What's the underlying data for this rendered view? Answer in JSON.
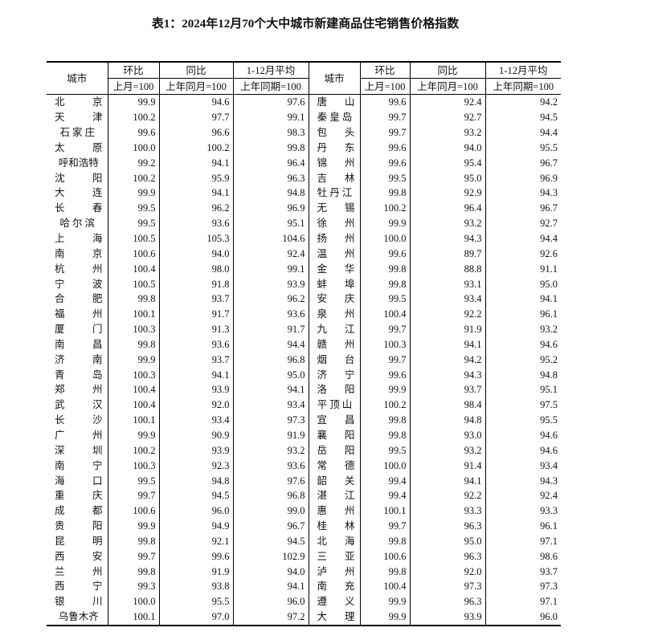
{
  "title": "表1：2024年12月70个大中城市新建商品住宅销售价格指数",
  "headers": {
    "city": "城市",
    "mom": "环比",
    "mom_base": "上月=100",
    "yoy": "同比",
    "yoy_base": "上年同月=100",
    "avg": "1-12月平均",
    "avg_base": "上年同期=100"
  },
  "left": [
    [
      "北京",
      "99.9",
      "94.6",
      "97.6"
    ],
    [
      "天津",
      "100.2",
      "97.7",
      "99.1"
    ],
    [
      "石家庄",
      "99.6",
      "96.6",
      "98.3"
    ],
    [
      "太原",
      "100.0",
      "100.2",
      "99.8"
    ],
    [
      "呼和浩特",
      "99.2",
      "94.1",
      "96.4"
    ],
    [
      "沈阳",
      "100.2",
      "95.9",
      "96.3"
    ],
    [
      "大连",
      "99.9",
      "94.1",
      "94.8"
    ],
    [
      "长春",
      "99.5",
      "96.2",
      "96.9"
    ],
    [
      "哈尔滨",
      "99.5",
      "93.6",
      "95.1"
    ],
    [
      "上海",
      "100.5",
      "105.3",
      "104.6"
    ],
    [
      "南京",
      "100.6",
      "94.0",
      "92.4"
    ],
    [
      "杭州",
      "100.4",
      "98.0",
      "99.1"
    ],
    [
      "宁波",
      "100.5",
      "91.8",
      "93.9"
    ],
    [
      "合肥",
      "99.8",
      "93.7",
      "96.2"
    ],
    [
      "福州",
      "100.1",
      "91.7",
      "93.6"
    ],
    [
      "厦门",
      "100.3",
      "91.3",
      "91.7"
    ],
    [
      "南昌",
      "99.8",
      "93.6",
      "94.4"
    ],
    [
      "济南",
      "99.9",
      "93.7",
      "96.8"
    ],
    [
      "青岛",
      "100.3",
      "94.1",
      "95.0"
    ],
    [
      "郑州",
      "100.4",
      "93.9",
      "94.1"
    ],
    [
      "武汉",
      "100.4",
      "92.0",
      "93.4"
    ],
    [
      "长沙",
      "100.1",
      "93.4",
      "97.3"
    ],
    [
      "广州",
      "99.9",
      "90.9",
      "91.9"
    ],
    [
      "深圳",
      "100.2",
      "93.9",
      "93.2"
    ],
    [
      "南宁",
      "100.3",
      "92.3",
      "93.6"
    ],
    [
      "海口",
      "99.5",
      "94.8",
      "97.6"
    ],
    [
      "重庆",
      "99.7",
      "94.5",
      "96.8"
    ],
    [
      "成都",
      "100.6",
      "96.0",
      "99.0"
    ],
    [
      "贵阳",
      "99.9",
      "94.9",
      "96.7"
    ],
    [
      "昆明",
      "99.8",
      "92.1",
      "94.5"
    ],
    [
      "西安",
      "99.7",
      "99.6",
      "102.9"
    ],
    [
      "兰州",
      "99.8",
      "91.9",
      "94.0"
    ],
    [
      "西宁",
      "99.3",
      "93.8",
      "94.1"
    ],
    [
      "银川",
      "100.0",
      "95.5",
      "96.0"
    ],
    [
      "乌鲁木齐",
      "100.1",
      "97.0",
      "97.2"
    ]
  ],
  "right": [
    [
      "唐山",
      "99.6",
      "92.4",
      "94.2"
    ],
    [
      "秦皇岛",
      "99.7",
      "92.7",
      "94.5"
    ],
    [
      "包头",
      "99.7",
      "93.2",
      "94.4"
    ],
    [
      "丹东",
      "99.6",
      "94.0",
      "95.5"
    ],
    [
      "锦州",
      "99.6",
      "95.4",
      "96.7"
    ],
    [
      "吉林",
      "99.5",
      "95.0",
      "96.9"
    ],
    [
      "牡丹江",
      "99.8",
      "92.9",
      "94.3"
    ],
    [
      "无锡",
      "100.2",
      "96.4",
      "96.7"
    ],
    [
      "徐州",
      "99.9",
      "93.2",
      "92.7"
    ],
    [
      "扬州",
      "100.0",
      "94.3",
      "94.4"
    ],
    [
      "温州",
      "99.6",
      "89.7",
      "92.6"
    ],
    [
      "金华",
      "99.8",
      "88.8",
      "91.1"
    ],
    [
      "蚌埠",
      "99.8",
      "93.1",
      "95.0"
    ],
    [
      "安庆",
      "99.5",
      "93.4",
      "94.1"
    ],
    [
      "泉州",
      "100.4",
      "92.2",
      "96.1"
    ],
    [
      "九江",
      "99.7",
      "91.9",
      "93.2"
    ],
    [
      "赣州",
      "100.3",
      "94.1",
      "94.6"
    ],
    [
      "烟台",
      "99.7",
      "94.2",
      "95.2"
    ],
    [
      "济宁",
      "99.6",
      "94.3",
      "94.8"
    ],
    [
      "洛阳",
      "99.9",
      "93.7",
      "95.1"
    ],
    [
      "平顶山",
      "100.2",
      "98.4",
      "97.5"
    ],
    [
      "宜昌",
      "99.8",
      "94.8",
      "95.5"
    ],
    [
      "襄阳",
      "99.8",
      "93.0",
      "94.6"
    ],
    [
      "岳阳",
      "99.5",
      "93.2",
      "94.6"
    ],
    [
      "常德",
      "100.0",
      "91.4",
      "93.4"
    ],
    [
      "韶关",
      "99.4",
      "94.1",
      "94.3"
    ],
    [
      "湛江",
      "99.4",
      "92.2",
      "92.4"
    ],
    [
      "惠州",
      "100.1",
      "93.3",
      "93.3"
    ],
    [
      "桂林",
      "99.7",
      "96.3",
      "96.1"
    ],
    [
      "北海",
      "99.8",
      "95.0",
      "97.1"
    ],
    [
      "三亚",
      "100.6",
      "96.3",
      "98.6"
    ],
    [
      "泸州",
      "99.8",
      "92.0",
      "93.7"
    ],
    [
      "南充",
      "100.4",
      "97.3",
      "97.3"
    ],
    [
      "遵义",
      "99.9",
      "96.3",
      "97.1"
    ],
    [
      "大理",
      "99.9",
      "93.9",
      "96.0"
    ]
  ]
}
